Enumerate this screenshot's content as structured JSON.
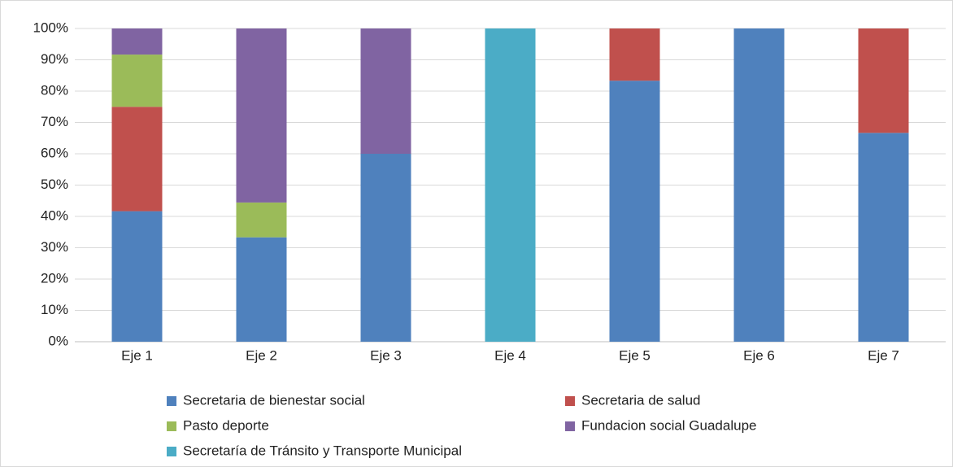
{
  "chart_data": {
    "type": "stacked_bar",
    "categories": [
      "Eje 1",
      "Eje 2",
      "Eje 3",
      "Eje 4",
      "Eje 5",
      "Eje 6",
      "Eje 7"
    ],
    "series": [
      {
        "name": "Secretaria de bienestar social",
        "color": "#4f81bd",
        "values": [
          41.67,
          33.33,
          60,
          0,
          83.33,
          100,
          66.67
        ]
      },
      {
        "name": "Secretaria de salud",
        "color": "#c0504d",
        "values": [
          33.33,
          0,
          0,
          0,
          16.67,
          0,
          33.33
        ]
      },
      {
        "name": "Pasto deporte",
        "color": "#9bbb59",
        "values": [
          16.67,
          11.11,
          0,
          0,
          0,
          0,
          0
        ]
      },
      {
        "name": "Fundacion social Guadalupe",
        "color": "#8064a2",
        "values": [
          8.33,
          55.56,
          40,
          0,
          0,
          0,
          0
        ]
      },
      {
        "name": "Secretaría de Tránsito y Transporte Municipal",
        "color": "#4bacc6",
        "values": [
          0,
          0,
          0,
          100,
          0,
          0,
          0
        ]
      }
    ],
    "ylim": [
      0,
      100
    ],
    "yticks": [
      {
        "value": 0,
        "label": "0%"
      },
      {
        "value": 10,
        "label": "10%"
      },
      {
        "value": 20,
        "label": "20%"
      },
      {
        "value": 30,
        "label": "30%"
      },
      {
        "value": 40,
        "label": "40%"
      },
      {
        "value": 50,
        "label": "50%"
      },
      {
        "value": 60,
        "label": "60%"
      },
      {
        "value": 70,
        "label": "70%"
      },
      {
        "value": 80,
        "label": "80%"
      },
      {
        "value": 90,
        "label": "90%"
      },
      {
        "value": 100,
        "label": "100%"
      }
    ],
    "grid": true,
    "legend": "bottom"
  }
}
